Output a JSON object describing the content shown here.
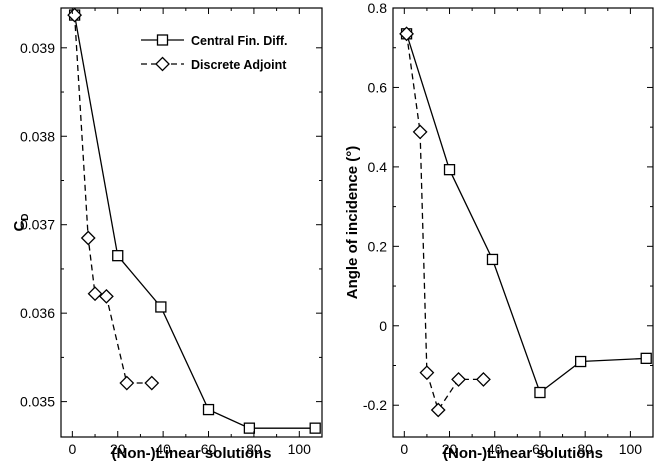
{
  "chart_data": [
    {
      "type": "line",
      "xlabel": "(Non-)Linear solutions",
      "ylabel_main": "C",
      "ylabel_sub": "D",
      "xlim": [
        -5,
        110
      ],
      "ylim": [
        0.0346,
        0.03945
      ],
      "xticks": [
        0,
        20,
        40,
        60,
        80,
        100
      ],
      "yticks": [
        0.035,
        0.036,
        0.037,
        0.038,
        0.039
      ],
      "ytick_labels": [
        "0.035",
        "0.036",
        "0.037",
        "0.038",
        "0.039"
      ],
      "legend_position": "top-right",
      "series": [
        {
          "name": "Central Fin. Diff.",
          "line": "solid",
          "marker": "square",
          "x": [
            1,
            20,
            39,
            60,
            78,
            107
          ],
          "y": [
            0.03937,
            0.03665,
            0.03607,
            0.03491,
            0.0347,
            0.0347
          ]
        },
        {
          "name": "Discrete Adjoint",
          "line": "dashed",
          "marker": "diamond",
          "x": [
            1,
            7,
            10,
            15,
            24,
            35
          ],
          "y": [
            0.03937,
            0.03685,
            0.03622,
            0.03619,
            0.03521,
            0.03521
          ]
        }
      ]
    },
    {
      "type": "line",
      "xlabel": "(Non-)Linear solutions",
      "ylabel": "Angle of incidence (°)",
      "xlim": [
        -5,
        110
      ],
      "ylim": [
        -0.28,
        0.8
      ],
      "xticks": [
        0,
        20,
        40,
        60,
        80,
        100
      ],
      "yticks": [
        -0.2,
        0,
        0.2,
        0.4,
        0.6,
        0.8
      ],
      "ytick_labels": [
        "-0.2",
        "0",
        "0.2",
        "0.4",
        "0.6",
        "0.8"
      ],
      "series": [
        {
          "name": "Central Fin. Diff.",
          "line": "solid",
          "marker": "square",
          "x": [
            1,
            20,
            39,
            60,
            78,
            107
          ],
          "y": [
            0.735,
            0.393,
            0.167,
            -0.168,
            -0.09,
            -0.082
          ]
        },
        {
          "name": "Discrete Adjoint",
          "line": "dashed",
          "marker": "diamond",
          "x": [
            1,
            7,
            10,
            15,
            24,
            35
          ],
          "y": [
            0.735,
            0.488,
            -0.118,
            -0.212,
            -0.135,
            -0.135
          ]
        }
      ]
    }
  ]
}
